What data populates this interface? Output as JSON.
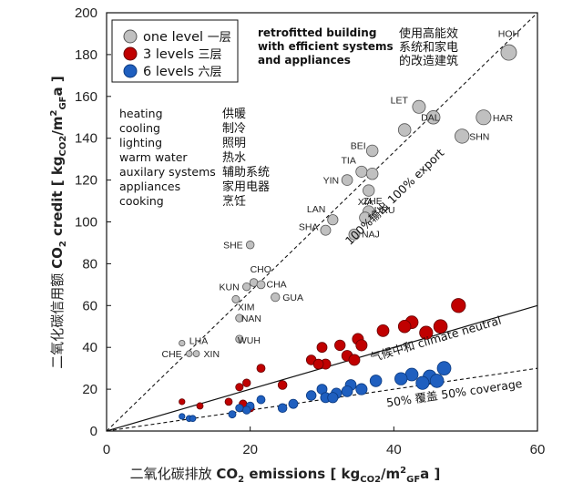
{
  "chart_data": {
    "type": "scatter",
    "xlabel": "二氧化碳排放 CO₂ emissions [ kgCO₂/m²GFa ]",
    "xlabel_parts": {
      "cn": "二氧化碳排放",
      "en": "CO",
      "sub1": "2",
      "mid": " emissions [ kg",
      "sub2": "CO2",
      "unit": "/m",
      "sup": "2",
      "sub3": "GF",
      "end": "a ]"
    },
    "ylabel_parts": {
      "cn": "二氧化碳信用额",
      "en": "CO",
      "sub1": "2",
      "mid": " credit [ kg",
      "sub2": "CO2",
      "unit": "/m",
      "sup": "2",
      "sub3": "GF",
      "end": "a ]"
    },
    "xlim": [
      0,
      60
    ],
    "ylim": [
      0,
      200
    ],
    "xticks": [
      0,
      20,
      40,
      60
    ],
    "yticks": [
      0,
      20,
      40,
      60,
      80,
      100,
      120,
      140,
      160,
      180,
      200
    ],
    "legend": [
      {
        "label": "one level",
        "cn": "一层",
        "color": "#c0c0c0"
      },
      {
        "label": "3 levels",
        "cn": "三层",
        "color": "#c00000"
      },
      {
        "label": "6 levels",
        "cn": "六层",
        "color": "#1f5fbf"
      }
    ],
    "lines": [
      {
        "name": "100% export",
        "label": "100%输出 100% export",
        "slope": 3.333,
        "style": "dashed"
      },
      {
        "name": "climate neutral",
        "label": "气候中和   climate neutral",
        "slope": 1.0,
        "style": "solid"
      },
      {
        "name": "50% coverage",
        "label": "50% 覆盖   50% coverage",
        "slope": 0.5,
        "style": "dashed"
      }
    ],
    "series": [
      {
        "name": "one level",
        "points": [
          {
            "label": "HOH",
            "x": 56.0,
            "y": 181
          },
          {
            "label": "LET",
            "x": 43.5,
            "y": 155
          },
          {
            "label": "",
            "x": 45.5,
            "y": 150
          },
          {
            "label": "HAR",
            "x": 52.5,
            "y": 150
          },
          {
            "label": "DAL",
            "x": 41.5,
            "y": 144
          },
          {
            "label": "SHN",
            "x": 49.5,
            "y": 141
          },
          {
            "label": "BEI",
            "x": 37.0,
            "y": 134
          },
          {
            "label": "TIA",
            "x": 35.5,
            "y": 124
          },
          {
            "label": "",
            "x": 37.0,
            "y": 123
          },
          {
            "label": "YIN",
            "x": 33.5,
            "y": 120
          },
          {
            "label": "ZHE",
            "x": 36.5,
            "y": 115
          },
          {
            "label": "XIA",
            "x": 36.5,
            "y": 105
          },
          {
            "label": "URU",
            "x": 36.0,
            "y": 102
          },
          {
            "label": "LAN",
            "x": 31.5,
            "y": 101
          },
          {
            "label": "SHA",
            "x": 30.5,
            "y": 96
          },
          {
            "label": "NAJ",
            "x": 34.5,
            "y": 94
          },
          {
            "label": "SHE",
            "x": 20.0,
            "y": 89
          },
          {
            "label": "CHO",
            "x": 20.5,
            "y": 71
          },
          {
            "label": "CHA",
            "x": 21.5,
            "y": 70
          },
          {
            "label": "KUN",
            "x": 19.5,
            "y": 69
          },
          {
            "label": "GUA",
            "x": 23.5,
            "y": 64
          },
          {
            "label": "XIM",
            "x": 18.0,
            "y": 63
          },
          {
            "label": "NAN",
            "x": 18.5,
            "y": 54
          },
          {
            "label": "WUH",
            "x": 18.5,
            "y": 44
          },
          {
            "label": "LHA",
            "x": 10.5,
            "y": 42
          },
          {
            "label": "CHE",
            "x": 11.5,
            "y": 37
          },
          {
            "label": "XIN",
            "x": 12.5,
            "y": 37
          }
        ]
      },
      {
        "name": "3 levels",
        "points": [
          {
            "x": 49.0,
            "y": 60
          },
          {
            "x": 42.5,
            "y": 52
          },
          {
            "x": 41.5,
            "y": 50
          },
          {
            "x": 46.5,
            "y": 50
          },
          {
            "x": 44.5,
            "y": 47
          },
          {
            "x": 38.5,
            "y": 48
          },
          {
            "x": 35.0,
            "y": 44
          },
          {
            "x": 35.5,
            "y": 41
          },
          {
            "x": 32.5,
            "y": 41
          },
          {
            "x": 30.0,
            "y": 40
          },
          {
            "x": 33.5,
            "y": 36
          },
          {
            "x": 28.5,
            "y": 34
          },
          {
            "x": 30.5,
            "y": 32
          },
          {
            "x": 29.5,
            "y": 32
          },
          {
            "x": 34.5,
            "y": 34
          },
          {
            "x": 21.5,
            "y": 30
          },
          {
            "x": 19.5,
            "y": 23
          },
          {
            "x": 24.5,
            "y": 22
          },
          {
            "x": 18.5,
            "y": 21
          },
          {
            "x": 17.0,
            "y": 14
          },
          {
            "x": 13.0,
            "y": 12
          },
          {
            "x": 10.5,
            "y": 14
          },
          {
            "x": 19.0,
            "y": 13
          },
          {
            "x": 20.0,
            "y": 11
          }
        ]
      },
      {
        "name": "6 levels",
        "points": [
          {
            "x": 47.0,
            "y": 30
          },
          {
            "x": 42.5,
            "y": 27
          },
          {
            "x": 45.0,
            "y": 26
          },
          {
            "x": 41.0,
            "y": 25
          },
          {
            "x": 46.0,
            "y": 24
          },
          {
            "x": 37.5,
            "y": 24
          },
          {
            "x": 44.0,
            "y": 23
          },
          {
            "x": 34.0,
            "y": 22
          },
          {
            "x": 35.5,
            "y": 20
          },
          {
            "x": 30.0,
            "y": 20
          },
          {
            "x": 32.0,
            "y": 18
          },
          {
            "x": 33.5,
            "y": 19
          },
          {
            "x": 28.5,
            "y": 17
          },
          {
            "x": 30.5,
            "y": 16
          },
          {
            "x": 31.5,
            "y": 16
          },
          {
            "x": 26.0,
            "y": 13
          },
          {
            "x": 24.5,
            "y": 11
          },
          {
            "x": 21.5,
            "y": 15
          },
          {
            "x": 20.0,
            "y": 12
          },
          {
            "x": 19.5,
            "y": 10
          },
          {
            "x": 18.5,
            "y": 11
          },
          {
            "x": 17.5,
            "y": 8
          },
          {
            "x": 11.5,
            "y": 6
          },
          {
            "x": 10.5,
            "y": 7
          },
          {
            "x": 12.0,
            "y": 6
          }
        ]
      }
    ],
    "annotations": {
      "uses": {
        "en": [
          "heating",
          "cooling",
          "lighting",
          "warm water",
          "auxilary systems",
          "appliances",
          "cooking"
        ],
        "cn": [
          "供暖",
          "制冷",
          "照明",
          "热水",
          "辅助系统",
          "家用电器",
          "烹饪"
        ]
      },
      "retrofit_en": [
        "retrofitted building",
        "with efficient systems",
        "and appliances"
      ],
      "retrofit_cn": [
        "使用高能效",
        "系统和家电",
        "的改造建筑"
      ]
    }
  }
}
